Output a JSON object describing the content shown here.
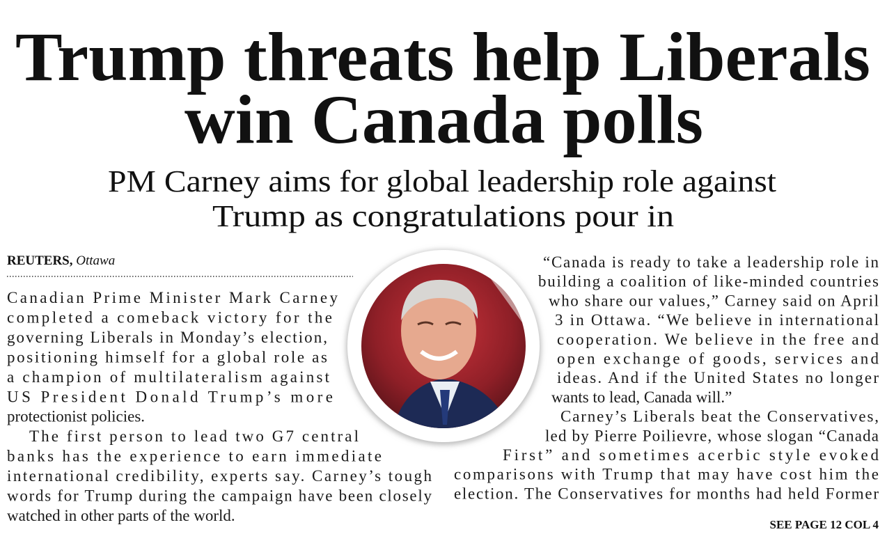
{
  "headline": {
    "lines": [
      "Trump threats help Liberals",
      "win Canada polls"
    ]
  },
  "subheadline": {
    "lines": [
      "PM Carney aims for global leadership role against",
      "Trump as congratulations pour in"
    ]
  },
  "byline": {
    "agency": "REUTERS,",
    "place": "Ottawa"
  },
  "left_column": {
    "paragraphs": [
      {
        "lines": [
          "Canadian Prime Minister Mark Carney",
          "completed a comeback victory for the",
          "governing Liberals in Monday’s election,",
          "positioning himself for a global role as",
          "a champion of multilateralism against",
          "US President Donald Trump’s more",
          "protectionist policies."
        ]
      },
      {
        "lines": [
          "The first person to lead two G7 central",
          "banks has the experience to earn immediate",
          "international credibility, experts say. Carney’s tough",
          "words for Trump during the campaign have been closely",
          "watched in other parts of the world."
        ]
      }
    ]
  },
  "right_column": {
    "paragraphs": [
      {
        "lines": [
          "“Canada is ready to take a leadership role in",
          "building a coalition of like-minded countries",
          "who share our values,” Carney said on April",
          "3 in Ottawa. “We believe in international",
          "cooperation. We believe in the free and",
          "open exchange of goods, services and",
          "ideas. And if the United States no longer",
          "wants to lead, Canada will.”"
        ]
      },
      {
        "lines": [
          "Carney’s Liberals beat the Conservatives,",
          "led by Pierre Poilievre, whose slogan “Canada",
          "First” and sometimes acerbic style evoked",
          "comparisons with Trump that may have cost him the",
          "election. The Conservatives for months had held Former"
        ]
      }
    ]
  },
  "jump": "SEE PAGE 12 COL 4"
}
